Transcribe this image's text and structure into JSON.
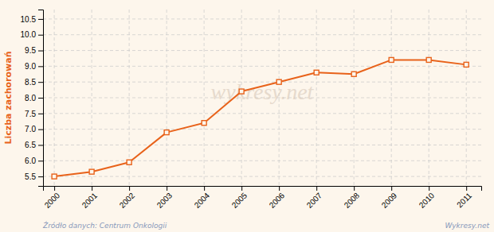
{
  "chart_data": {
    "type": "line",
    "ylabel": "Liczba zachorowań",
    "annotations": [
      "wykresy.net",
      "Źródło danych:  Centrum Onkologii",
      "Wykresy.net"
    ],
    "x": [
      2000,
      2001,
      2002,
      2003,
      2004,
      2005,
      2006,
      2007,
      2008,
      2009,
      2010,
      2011
    ],
    "values": [
      5.5,
      5.65,
      5.95,
      6.9,
      7.2,
      8.2,
      8.5,
      8.8,
      8.75,
      9.2,
      9.2,
      9.05
    ],
    "color": "#e8621a",
    "marker": "square",
    "xlim": [
      1999.7,
      2011.4
    ],
    "xticks": [
      2000,
      2001,
      2002,
      2003,
      2004,
      2005,
      2006,
      2007,
      2008,
      2009,
      2010,
      2011
    ],
    "ylim": [
      5.2,
      10.8
    ],
    "yticks": [
      5.5,
      {
        "value": 6,
        "label": "6.0"
      },
      6.5,
      {
        "value": 7,
        "label": "7.0"
      },
      7.5,
      {
        "value": 8,
        "label": "8.0"
      },
      8.5,
      {
        "value": 9,
        "label": "9.0"
      },
      9.5,
      {
        "value": 10,
        "label": "10.0"
      },
      10.5
    ],
    "grid": true
  }
}
